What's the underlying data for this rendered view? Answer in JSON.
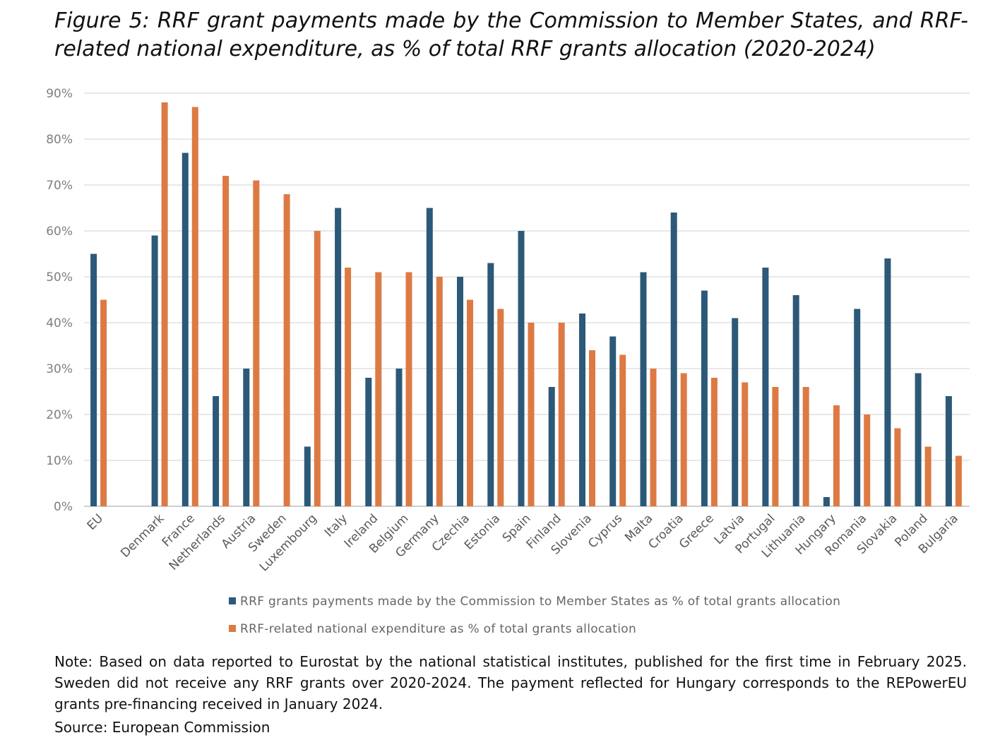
{
  "title": "Figure 5: RRF grant payments made by the Commission to Member States, and RRF-related national expenditure, as % of total RRF grants allocation (2020-2024)",
  "colors": {
    "series1": "#2c5978",
    "series2": "#dd7a44",
    "grid": "#d9d9d9",
    "axis_text": "#7f7f7f"
  },
  "chart_data": {
    "type": "bar",
    "categories": [
      "EU",
      "",
      "Denmark",
      "France",
      "Netherlands",
      "Austria",
      "Sweden",
      "Luxembourg",
      "Italy",
      "Ireland",
      "Belgium",
      "Germany",
      "Czechia",
      "Estonia",
      "Spain",
      "Finland",
      "Slovenia",
      "Cyprus",
      "Malta",
      "Croatia",
      "Greece",
      "Latvia",
      "Portugal",
      "Lithuania",
      "Hungary",
      "Romania",
      "Slovakia",
      "Poland",
      "Bulgaria"
    ],
    "series": [
      {
        "name": "RRF grants payments made by the Commission to Member States as % of total grants allocation",
        "values": [
          55,
          null,
          59,
          77,
          24,
          30,
          null,
          13,
          65,
          28,
          30,
          65,
          50,
          53,
          60,
          26,
          42,
          37,
          51,
          64,
          47,
          41,
          52,
          46,
          2,
          43,
          54,
          29,
          24
        ]
      },
      {
        "name": "RRF-related national expenditure as % of total grants allocation",
        "values": [
          45,
          null,
          88,
          87,
          72,
          71,
          68,
          60,
          52,
          51,
          51,
          50,
          45,
          43,
          40,
          40,
          34,
          33,
          30,
          29,
          28,
          27,
          26,
          26,
          22,
          20,
          17,
          13,
          11
        ]
      }
    ],
    "yticks": [
      "0%",
      "10%",
      "20%",
      "30%",
      "40%",
      "50%",
      "60%",
      "70%",
      "80%",
      "90%"
    ],
    "ylim": [
      0,
      90
    ],
    "grid": true,
    "legend_position": "bottom",
    "xlabel": "",
    "ylabel": ""
  },
  "note": {
    "label": "Note:",
    "text": " Based on data reported to Eurostat by the national statistical institutes, published for the first time in February 2025. Sweden did not receive any RRF grants over 2020-2024. The payment reflected for Hungary corresponds to the REPowerEU grants pre-financing received in January 2024."
  },
  "source": {
    "label": "Source:",
    "text": " European Commission"
  }
}
